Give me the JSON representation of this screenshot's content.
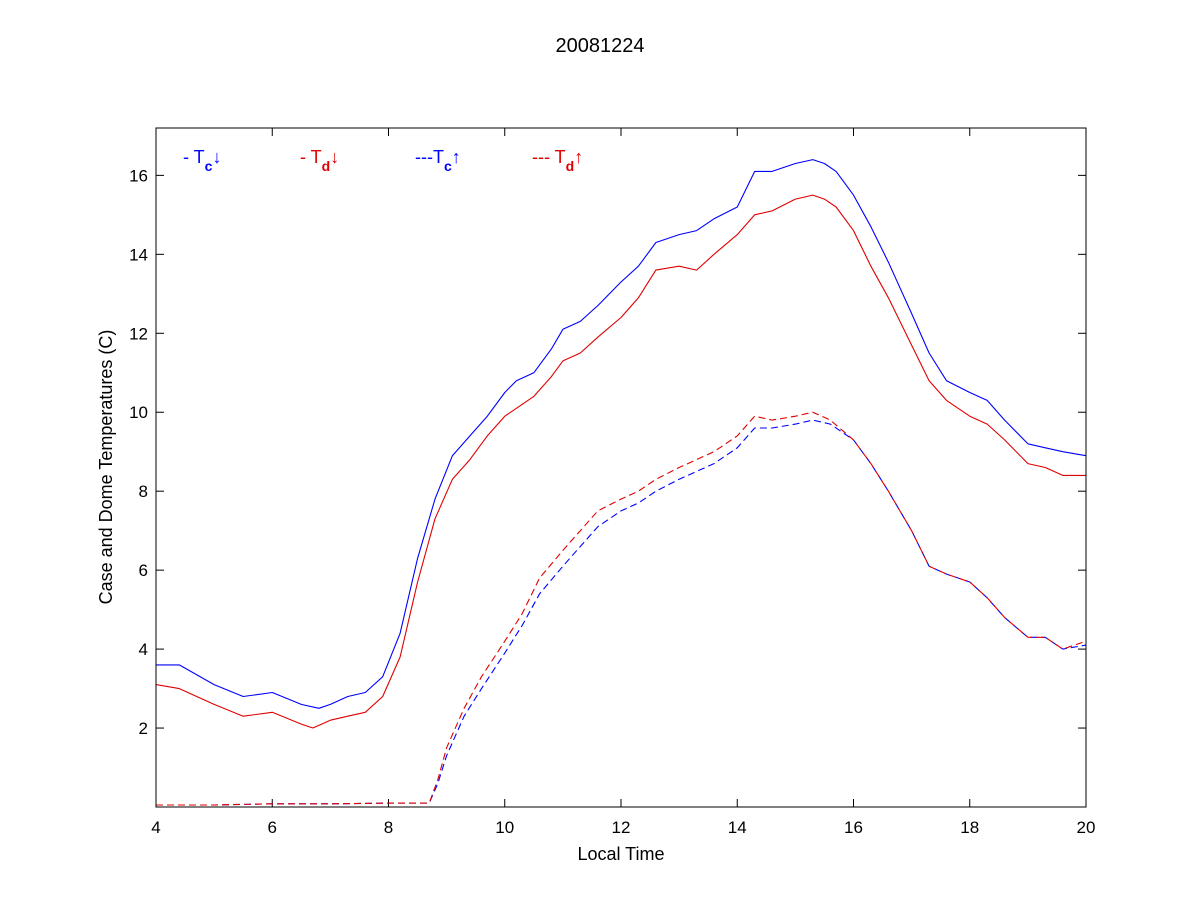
{
  "chart_data": {
    "type": "line",
    "title": "20081224",
    "xlabel": "Local Time",
    "ylabel": "Case and Dome Temperatures (C)",
    "xlim": [
      4,
      20
    ],
    "ylim": [
      0,
      17.2
    ],
    "xticks": [
      4,
      6,
      8,
      10,
      12,
      14,
      16,
      18,
      20
    ],
    "yticks": [
      2,
      4,
      6,
      8,
      10,
      12,
      14,
      16
    ],
    "grid": false,
    "legend": [
      {
        "prefix": "- T",
        "sub": "c",
        "arrow": "↓",
        "color": "#0000ff"
      },
      {
        "prefix": "- T",
        "sub": "d",
        "arrow": "↓",
        "color": "#e00000"
      },
      {
        "prefix": "---T",
        "sub": "c",
        "arrow": "↑",
        "color": "#0000ff"
      },
      {
        "prefix": "--- T",
        "sub": "d",
        "arrow": "↑",
        "color": "#e00000"
      }
    ],
    "series": [
      {
        "color": "#0000ff",
        "dash": "solid",
        "x": [
          4.0,
          4.4,
          5.0,
          5.5,
          6.0,
          6.5,
          6.8,
          7.0,
          7.3,
          7.6,
          7.9,
          8.2,
          8.5,
          8.8,
          9.1,
          9.4,
          9.7,
          10.0,
          10.2,
          10.5,
          10.8,
          11.0,
          11.3,
          11.6,
          12.0,
          12.3,
          12.6,
          13.0,
          13.3,
          13.6,
          14.0,
          14.3,
          14.6,
          15.0,
          15.3,
          15.5,
          15.7,
          16.0,
          16.3,
          16.6,
          17.0,
          17.3,
          17.6,
          18.0,
          18.3,
          18.6,
          19.0,
          19.3,
          19.6,
          20.0
        ],
        "y": [
          3.6,
          3.6,
          3.1,
          2.8,
          2.9,
          2.6,
          2.5,
          2.6,
          2.8,
          2.9,
          3.3,
          4.4,
          6.3,
          7.8,
          8.9,
          9.4,
          9.9,
          10.5,
          10.8,
          11.0,
          11.6,
          12.1,
          12.3,
          12.7,
          13.3,
          13.7,
          14.3,
          14.5,
          14.6,
          14.9,
          15.2,
          16.1,
          16.1,
          16.3,
          16.4,
          16.3,
          16.1,
          15.5,
          14.7,
          13.8,
          12.5,
          11.5,
          10.8,
          10.5,
          10.3,
          9.8,
          9.2,
          9.1,
          9.0,
          8.9
        ]
      },
      {
        "color": "#e00000",
        "dash": "solid",
        "x": [
          4.0,
          4.4,
          5.0,
          5.5,
          6.0,
          6.5,
          6.7,
          7.0,
          7.3,
          7.6,
          7.9,
          8.2,
          8.5,
          8.8,
          9.1,
          9.4,
          9.7,
          10.0,
          10.2,
          10.5,
          10.8,
          11.0,
          11.3,
          11.6,
          12.0,
          12.3,
          12.6,
          13.0,
          13.3,
          13.6,
          14.0,
          14.3,
          14.6,
          15.0,
          15.3,
          15.5,
          15.7,
          16.0,
          16.3,
          16.6,
          17.0,
          17.3,
          17.6,
          18.0,
          18.3,
          18.6,
          19.0,
          19.3,
          19.6,
          20.0
        ],
        "y": [
          3.1,
          3.0,
          2.6,
          2.3,
          2.4,
          2.1,
          2.0,
          2.2,
          2.3,
          2.4,
          2.8,
          3.8,
          5.7,
          7.3,
          8.3,
          8.8,
          9.4,
          9.9,
          10.1,
          10.4,
          10.9,
          11.3,
          11.5,
          11.9,
          12.4,
          12.9,
          13.6,
          13.7,
          13.6,
          14.0,
          14.5,
          15.0,
          15.1,
          15.4,
          15.5,
          15.4,
          15.2,
          14.6,
          13.7,
          12.9,
          11.7,
          10.8,
          10.3,
          9.9,
          9.7,
          9.3,
          8.7,
          8.6,
          8.4,
          8.4
        ]
      },
      {
        "color": "#0000ff",
        "dash": "dashed",
        "x": [
          4.0,
          5.0,
          6.0,
          7.0,
          8.0,
          8.7,
          8.85,
          9.0,
          9.3,
          9.6,
          10.0,
          10.3,
          10.6,
          11.0,
          11.3,
          11.6,
          12.0,
          12.3,
          12.6,
          13.0,
          13.3,
          13.6,
          14.0,
          14.3,
          14.6,
          15.0,
          15.3,
          15.6,
          16.0,
          16.3,
          16.6,
          17.0,
          17.3,
          17.6,
          18.0,
          18.3,
          18.6,
          19.0,
          19.3,
          19.6,
          20.0
        ],
        "y": [
          0.05,
          0.05,
          0.08,
          0.08,
          0.1,
          0.1,
          0.6,
          1.3,
          2.3,
          3.0,
          3.9,
          4.6,
          5.4,
          6.1,
          6.6,
          7.1,
          7.5,
          7.7,
          8.0,
          8.3,
          8.5,
          8.7,
          9.1,
          9.6,
          9.6,
          9.7,
          9.8,
          9.7,
          9.3,
          8.7,
          8.0,
          7.0,
          6.1,
          5.9,
          5.7,
          5.3,
          4.8,
          4.3,
          4.3,
          4.0,
          4.1
        ]
      },
      {
        "color": "#e00000",
        "dash": "dashed",
        "x": [
          4.0,
          5.0,
          6.0,
          7.0,
          8.0,
          8.7,
          8.85,
          9.0,
          9.3,
          9.6,
          10.0,
          10.3,
          10.6,
          11.0,
          11.3,
          11.6,
          12.0,
          12.3,
          12.6,
          13.0,
          13.3,
          13.6,
          14.0,
          14.3,
          14.6,
          15.0,
          15.3,
          15.6,
          16.0,
          16.3,
          16.6,
          17.0,
          17.3,
          17.6,
          18.0,
          18.3,
          18.6,
          19.0,
          19.3,
          19.6,
          20.0
        ],
        "y": [
          0.05,
          0.05,
          0.08,
          0.08,
          0.1,
          0.1,
          0.7,
          1.5,
          2.5,
          3.3,
          4.2,
          4.9,
          5.8,
          6.5,
          7.0,
          7.5,
          7.8,
          8.0,
          8.3,
          8.6,
          8.8,
          9.0,
          9.4,
          9.9,
          9.8,
          9.9,
          10.0,
          9.8,
          9.3,
          8.7,
          8.0,
          7.0,
          6.1,
          5.9,
          5.7,
          5.3,
          4.8,
          4.3,
          4.3,
          4.0,
          4.2
        ]
      }
    ]
  }
}
